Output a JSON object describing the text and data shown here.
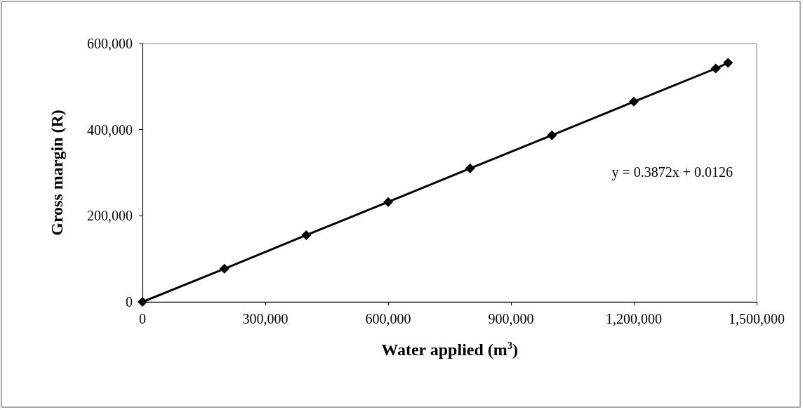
{
  "chart_data": {
    "type": "line",
    "xlabel": "Water applied (m$^{3}$)",
    "ylabel": "Gross margin (R)",
    "x": [
      0,
      200000,
      400000,
      600000,
      800000,
      1000000,
      1200000,
      1400000,
      1430000
    ],
    "series": [
      {
        "color": "#000000",
        "values": [
          0,
          77000,
          155000,
          232000,
          310000,
          387000,
          465000,
          542000,
          555000
        ]
      }
    ],
    "xlim": [
      0,
      1500000
    ],
    "xticks": [
      0,
      {
        "value": 300000,
        "label": "300,000"
      },
      {
        "value": 600000,
        "label": "600,000"
      },
      {
        "value": 900000,
        "label": "900,000"
      },
      {
        "value": 1200000,
        "label": "1,200,000"
      },
      {
        "value": 1500000,
        "label": "1,500,000"
      }
    ],
    "ylim": [
      0,
      600000
    ],
    "yticks": [
      0,
      {
        "value": 200000,
        "label": "200,000"
      },
      {
        "value": 400000,
        "label": "400,000"
      },
      {
        "value": 600000,
        "label": "600,000"
      }
    ],
    "annotations": [
      "y = 0.3872x + 0.0126"
    ],
    "marker": "diamond"
  }
}
